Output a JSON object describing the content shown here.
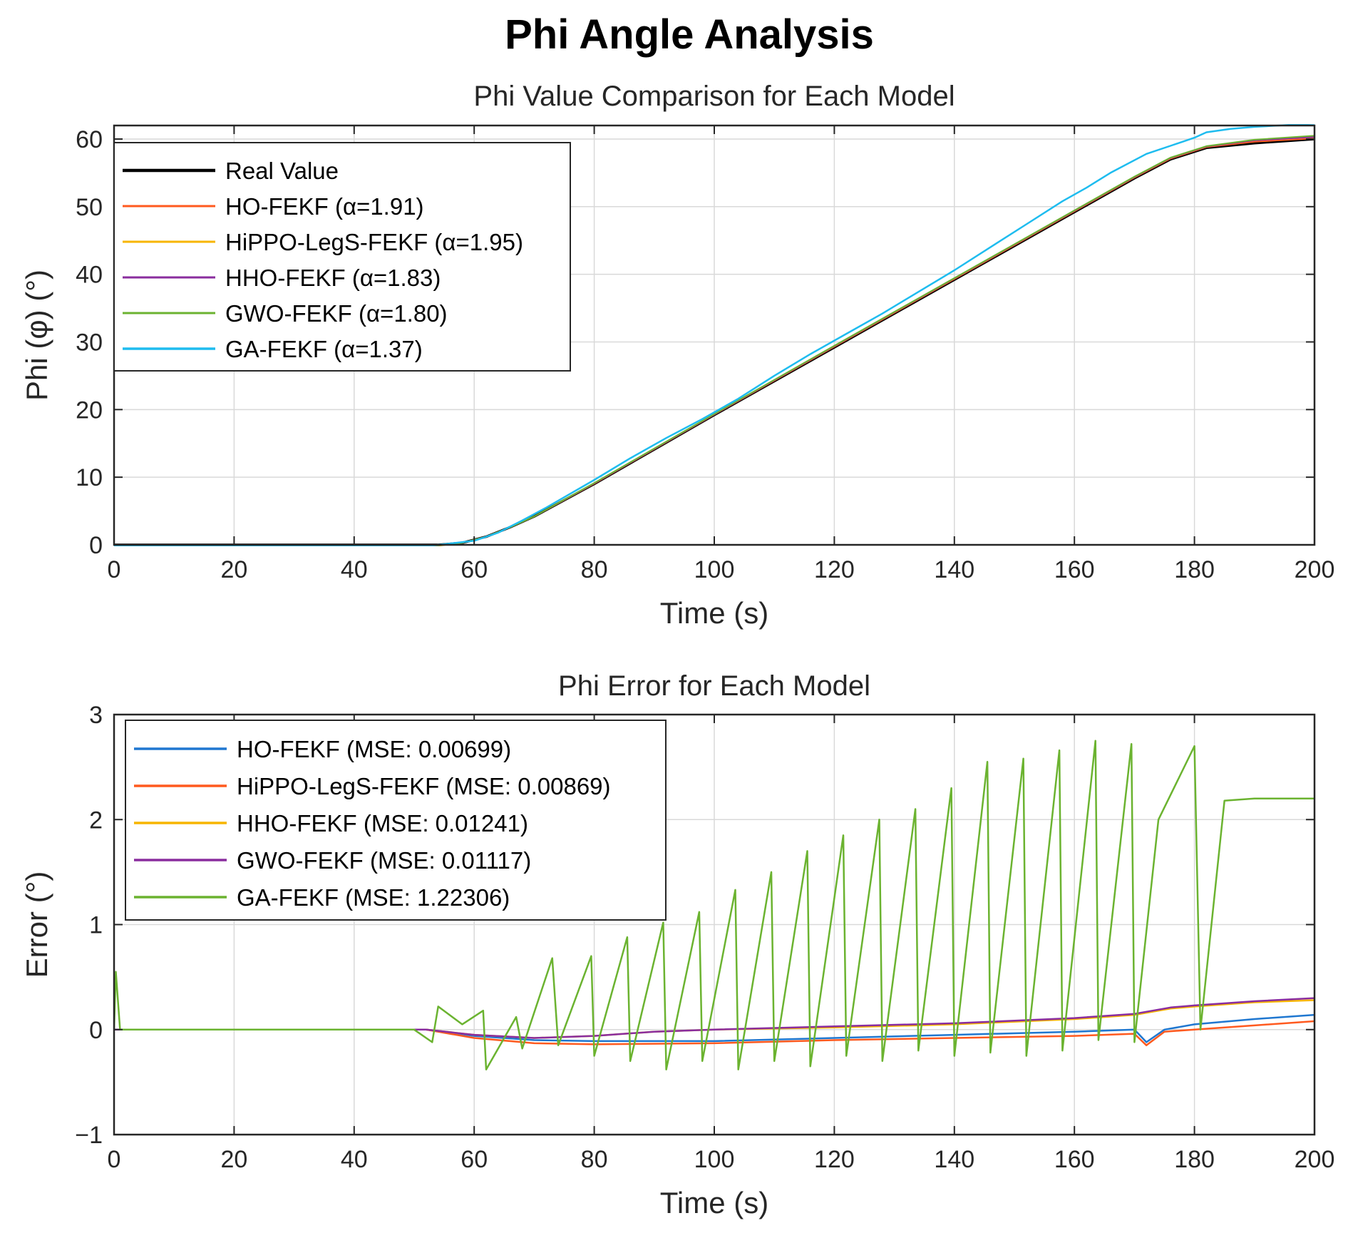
{
  "figure_title": "Phi Angle Analysis",
  "chart_data": [
    {
      "type": "line",
      "title": "Phi Value Comparison for Each Model",
      "xlabel": "Time (s)",
      "ylabel": "Phi (φ) (°)",
      "xlim": [
        0,
        200
      ],
      "ylim": [
        0,
        62
      ],
      "xticks": [
        0,
        20,
        40,
        60,
        80,
        100,
        120,
        140,
        160,
        180,
        200
      ],
      "yticks": [
        0,
        10,
        20,
        30,
        40,
        50,
        60
      ],
      "grid": true,
      "legend_position": "top-left",
      "series": [
        {
          "name": "Real Value",
          "color": "#000000",
          "width": 3.5,
          "x": [
            0,
            54,
            58,
            62,
            66,
            70,
            80,
            100,
            120,
            140,
            160,
            170,
            176,
            182,
            190,
            200
          ],
          "y": [
            0,
            0,
            0.3,
            1.2,
            2.6,
            4.2,
            9.0,
            19.2,
            29.2,
            39.2,
            49.2,
            54.2,
            57.0,
            58.7,
            59.4,
            60.0
          ]
        },
        {
          "name": "HO-FEKF (α=1.91)",
          "color": "#ff5a1f",
          "width": 2,
          "x": [
            0,
            54,
            58,
            62,
            66,
            70,
            80,
            100,
            120,
            140,
            160,
            170,
            176,
            182,
            190,
            200
          ],
          "y": [
            -0.1,
            -0.1,
            0.3,
            1.2,
            2.6,
            4.2,
            9.05,
            19.25,
            29.3,
            39.3,
            49.3,
            54.3,
            57.1,
            58.8,
            59.6,
            60.1
          ]
        },
        {
          "name": "HiPPO-LegS-FEKF (α=1.95)",
          "color": "#f7b500",
          "width": 2,
          "x": [
            0,
            54,
            58,
            62,
            66,
            70,
            80,
            100,
            120,
            140,
            160,
            170,
            176,
            182,
            190,
            200
          ],
          "y": [
            -0.15,
            -0.15,
            0.3,
            1.2,
            2.6,
            4.2,
            9.1,
            19.3,
            29.4,
            39.4,
            49.4,
            54.4,
            57.2,
            58.9,
            59.8,
            60.3
          ]
        },
        {
          "name": "HHO-FEKF (α=1.83)",
          "color": "#8a2d9e",
          "width": 2,
          "x": [
            0,
            54,
            58,
            62,
            66,
            70,
            80,
            100,
            120,
            140,
            160,
            170,
            176,
            182,
            190,
            200
          ],
          "y": [
            -0.1,
            -0.1,
            0.3,
            1.2,
            2.6,
            4.2,
            9.1,
            19.3,
            29.4,
            39.4,
            49.4,
            54.4,
            57.2,
            58.9,
            59.8,
            60.3
          ]
        },
        {
          "name": "GWO-FEKF (α=1.80)",
          "color": "#6bb330",
          "width": 2,
          "x": [
            0,
            54,
            58,
            62,
            66,
            70,
            80,
            100,
            120,
            140,
            160,
            170,
            176,
            182,
            190,
            200
          ],
          "y": [
            -0.1,
            -0.1,
            0.3,
            1.2,
            2.6,
            4.2,
            9.15,
            19.35,
            29.45,
            39.45,
            49.45,
            54.45,
            57.25,
            58.95,
            59.9,
            60.5
          ]
        },
        {
          "name": "GA-FEKF (α=1.37)",
          "color": "#1ebcef",
          "width": 2.5,
          "x": [
            0,
            52,
            56,
            60,
            64,
            68,
            72,
            80,
            86,
            92,
            98,
            104,
            110,
            116,
            122,
            128,
            134,
            140,
            146,
            152,
            158,
            162,
            166,
            172,
            176,
            178,
            180,
            182,
            186,
            190,
            200
          ],
          "y": [
            -0.2,
            -0.2,
            0.2,
            0.6,
            1.8,
            3.6,
            5.5,
            9.6,
            12.8,
            15.8,
            18.6,
            21.6,
            25.0,
            28.2,
            31.2,
            34.2,
            37.4,
            40.6,
            44.0,
            47.4,
            50.8,
            52.8,
            55.0,
            57.8,
            59.0,
            59.6,
            60.2,
            61.0,
            61.5,
            61.8,
            62.3
          ]
        }
      ]
    },
    {
      "type": "line",
      "title": "Phi Error for Each Model",
      "xlabel": "Time (s)",
      "ylabel": "Error (°)",
      "xlim": [
        0,
        200
      ],
      "ylim": [
        -1,
        3
      ],
      "xticks": [
        0,
        20,
        40,
        60,
        80,
        100,
        120,
        140,
        160,
        180,
        200
      ],
      "yticks": [
        -1,
        0,
        1,
        2,
        3
      ],
      "yticklabels": [
        "−1",
        "0",
        "1",
        "2",
        "3"
      ],
      "grid": true,
      "legend_position": "top-left",
      "series": [
        {
          "name": "HO-FEKF (MSE: 0.00699)",
          "color": "#1f77d0",
          "width": 2.5,
          "x": [
            0,
            52,
            60,
            70,
            80,
            100,
            120,
            140,
            160,
            170,
            172,
            175,
            180,
            190,
            200
          ],
          "y": [
            0.0,
            0.0,
            -0.06,
            -0.1,
            -0.11,
            -0.11,
            -0.08,
            -0.05,
            -0.02,
            0.0,
            -0.12,
            0.0,
            0.05,
            0.1,
            0.14
          ]
        },
        {
          "name": "HiPPO-LegS-FEKF (MSE: 0.00869)",
          "color": "#ff5a1f",
          "width": 2.5,
          "x": [
            0,
            52,
            60,
            70,
            80,
            100,
            120,
            140,
            160,
            170,
            172,
            175,
            180,
            190,
            200
          ],
          "y": [
            0.0,
            0.0,
            -0.08,
            -0.13,
            -0.14,
            -0.13,
            -0.1,
            -0.08,
            -0.06,
            -0.04,
            -0.15,
            -0.02,
            0.0,
            0.04,
            0.08
          ]
        },
        {
          "name": "HHO-FEKF (MSE: 0.01241)",
          "color": "#f7b500",
          "width": 2.5,
          "x": [
            0,
            52,
            60,
            70,
            80,
            90,
            100,
            120,
            140,
            160,
            170,
            176,
            180,
            190,
            200
          ],
          "y": [
            0.0,
            0.0,
            -0.05,
            -0.08,
            -0.06,
            -0.02,
            0.0,
            0.02,
            0.05,
            0.1,
            0.14,
            0.2,
            0.22,
            0.26,
            0.28
          ]
        },
        {
          "name": "GWO-FEKF (MSE: 0.01117)",
          "color": "#8a2d9e",
          "width": 2.5,
          "x": [
            0,
            52,
            60,
            70,
            80,
            90,
            100,
            120,
            140,
            160,
            170,
            176,
            180,
            190,
            200
          ],
          "y": [
            0.0,
            0.0,
            -0.05,
            -0.08,
            -0.06,
            -0.02,
            0.0,
            0.03,
            0.06,
            0.11,
            0.15,
            0.21,
            0.23,
            0.27,
            0.3
          ]
        },
        {
          "name": "GA-FEKF (MSE: 1.22306)",
          "color": "#6bb330",
          "width": 2.5,
          "x": [
            0,
            0.3,
            1,
            50,
            53,
            54,
            58,
            61.5,
            62,
            67,
            68,
            73,
            74,
            79.5,
            80,
            85.5,
            86,
            91.5,
            92,
            97.5,
            98,
            103.5,
            104,
            109.5,
            110,
            115.5,
            116,
            121.5,
            122,
            127.5,
            128,
            133.5,
            134,
            139.5,
            140,
            145.5,
            146,
            151.5,
            152,
            157.5,
            158,
            163.5,
            164,
            169.5,
            170,
            174,
            180,
            181,
            185,
            190,
            200
          ],
          "y": [
            0.0,
            0.55,
            0.0,
            0.0,
            -0.12,
            0.22,
            0.05,
            0.18,
            -0.38,
            0.12,
            -0.18,
            0.68,
            -0.15,
            0.7,
            -0.25,
            0.88,
            -0.3,
            1.02,
            -0.38,
            1.12,
            -0.3,
            1.33,
            -0.38,
            1.5,
            -0.3,
            1.7,
            -0.35,
            1.85,
            -0.25,
            2.0,
            -0.3,
            2.1,
            -0.2,
            2.3,
            -0.25,
            2.55,
            -0.22,
            2.58,
            -0.25,
            2.66,
            -0.2,
            2.75,
            -0.1,
            2.72,
            -0.12,
            2.0,
            2.7,
            0.0,
            2.18,
            2.2,
            2.2
          ]
        }
      ]
    }
  ]
}
